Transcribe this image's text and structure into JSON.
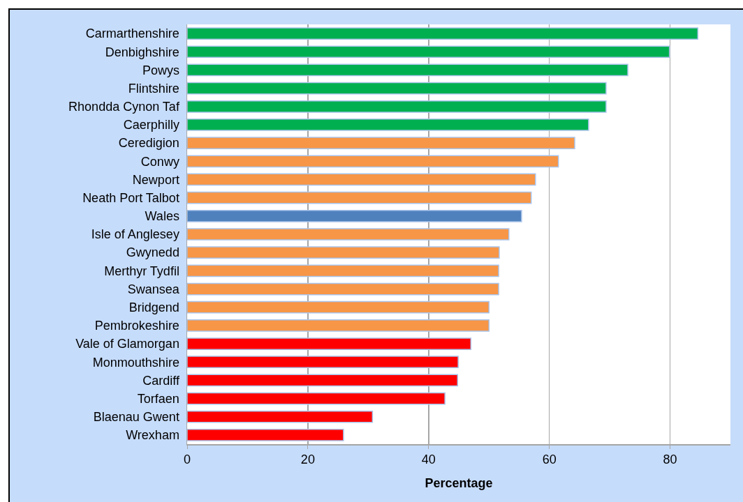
{
  "chart_data": {
    "type": "bar",
    "orientation": "horizontal",
    "xlabel": "Percentage",
    "categories": [
      "Carmarthenshire",
      "Denbighshire",
      "Powys",
      "Flintshire",
      "Rhondda Cynon Taf",
      "Caerphilly",
      "Ceredigion",
      "Conwy",
      "Newport",
      "Neath Port Talbot",
      "Wales",
      "Isle of Anglesey",
      "Gwynedd",
      "Merthyr Tydfil",
      "Swansea",
      "Bridgend",
      "Pembrokeshire",
      "Vale of Glamorgan",
      "Monmouthshire",
      "Cardiff",
      "Torfaen",
      "Blaenau Gwent",
      "Wrexham"
    ],
    "values": [
      84.6,
      79.9,
      73.0,
      69.4,
      69.4,
      66.5,
      64.2,
      61.5,
      57.7,
      57.0,
      55.4,
      53.3,
      51.7,
      51.6,
      51.6,
      50.0,
      50.0,
      47.0,
      44.9,
      44.8,
      42.7,
      30.7,
      25.9
    ],
    "colors": [
      "#00b050",
      "#00b050",
      "#00b050",
      "#00b050",
      "#00b050",
      "#00b050",
      "#f79646",
      "#f79646",
      "#f79646",
      "#f79646",
      "#4f81bd",
      "#f79646",
      "#f79646",
      "#f79646",
      "#f79646",
      "#f79646",
      "#f79646",
      "#ff0000",
      "#ff0000",
      "#ff0000",
      "#ff0000",
      "#ff0000",
      "#ff0000"
    ],
    "xlim": [
      0,
      90
    ],
    "xticks": [
      0,
      20,
      40,
      60,
      80
    ],
    "grid": "x"
  }
}
